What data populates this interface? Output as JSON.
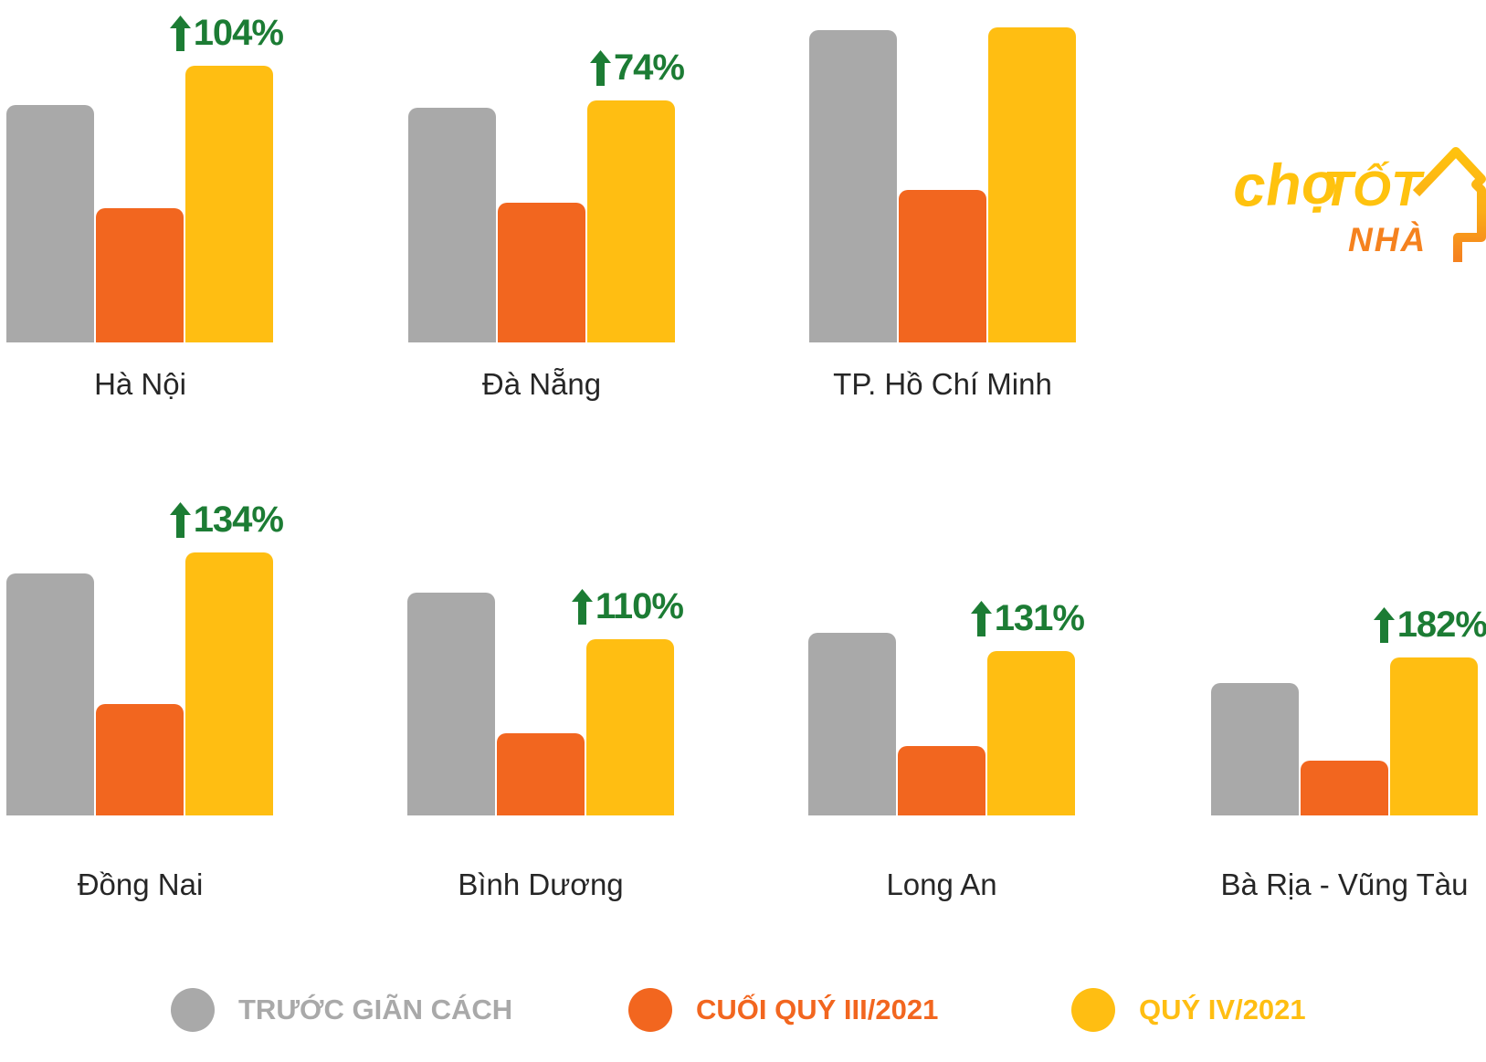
{
  "logo": {
    "cho": "chợ",
    "tot": "TỐT",
    "nha": "NHÀ",
    "color_yellow": "#FFC20E",
    "color_orange": "#F5821F"
  },
  "colors": {
    "bar_gray": "#A9A9A9",
    "bar_orange": "#F2661F",
    "bar_yellow": "#FFBE12",
    "pct_green": "#1C7C34",
    "label_text": "#262626",
    "background": "#FFFFFF"
  },
  "legend": {
    "items": [
      {
        "label": "TRƯỚC GIÃN CÁCH",
        "color": "#A9A9A9"
      },
      {
        "label": "CUỐI QUÝ III/2021",
        "color": "#F2661F"
      },
      {
        "label": "QUÝ IV/2021",
        "color": "#FFBE12"
      }
    ]
  },
  "chart_data": {
    "type": "bar",
    "title": "",
    "series_names": [
      "TRƯỚC GIÃN CÁCH",
      "CUỐI QUÝ III/2021",
      "QUÝ IV/2021"
    ],
    "categories": [
      "Hà Nội",
      "Đà Nẵng",
      "TP. Hồ Chí Minh",
      "Đồng Nai",
      "Bình Dương",
      "Long An",
      "Bà Rịa - Vũng Tàu"
    ],
    "values_unit": "relative bar height in px (no numeric axis shown in figure)",
    "annotation_meaning": "green arrow label = % increase of QUÝ IV/2021 vs CUỐI QUÝ III/2021",
    "legend_position": "bottom",
    "grid": false,
    "charts": [
      {
        "label": "Hà Nội",
        "values": {
          "truoc_gian_cach": 260,
          "cuoi_quy_iii_2021": 147,
          "quy_iv_2021": 303
        },
        "pct_change": "104%"
      },
      {
        "label": "Đà Nẵng",
        "values": {
          "truoc_gian_cach": 257,
          "cuoi_quy_iii_2021": 153,
          "quy_iv_2021": 265
        },
        "pct_change": "74%"
      },
      {
        "label": "TP. Hồ Chí Minh",
        "values": {
          "truoc_gian_cach": 342,
          "cuoi_quy_iii_2021": 167,
          "quy_iv_2021": 345
        },
        "pct_change": null
      },
      {
        "label": "Đồng Nai",
        "values": {
          "truoc_gian_cach": 265,
          "cuoi_quy_iii_2021": 122,
          "quy_iv_2021": 288
        },
        "pct_change": "134%"
      },
      {
        "label": "Bình Dương",
        "values": {
          "truoc_gian_cach": 244,
          "cuoi_quy_iii_2021": 90,
          "quy_iv_2021": 193
        },
        "pct_change": "110%"
      },
      {
        "label": "Long An",
        "values": {
          "truoc_gian_cach": 200,
          "cuoi_quy_iii_2021": 76,
          "quy_iv_2021": 180
        },
        "pct_change": "131%"
      },
      {
        "label": "Bà Rịa - Vũng Tàu",
        "values": {
          "truoc_gian_cach": 145,
          "cuoi_quy_iii_2021": 60,
          "quy_iv_2021": 173
        },
        "pct_change": "182%"
      }
    ]
  }
}
